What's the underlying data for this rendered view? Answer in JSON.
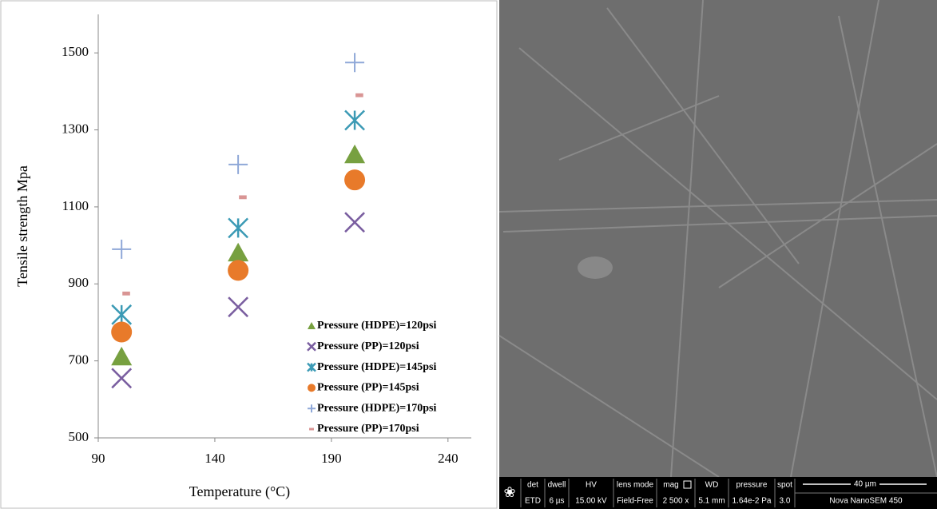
{
  "chart_data": {
    "type": "scatter",
    "xlabel": "Temperature (°C)",
    "ylabel": "Tensile strength Mpa",
    "xlim": [
      90,
      250
    ],
    "xticks": [
      90,
      140,
      190,
      240
    ],
    "ylim": [
      500,
      1600
    ],
    "yticks": [
      500,
      700,
      900,
      1100,
      1300,
      1500
    ],
    "series": [
      {
        "name": "Pressure (HDPE)=120psi",
        "color": "#77a040",
        "marker": "triangle",
        "x": [
          100,
          150,
          200
        ],
        "values": [
          710,
          980,
          1235
        ]
      },
      {
        "name": "Pressure (PP)=120psi",
        "color": "#7a5ea0",
        "marker": "x",
        "x": [
          100,
          150,
          200
        ],
        "values": [
          655,
          840,
          1060
        ]
      },
      {
        "name": "Pressure (HDPE)=145psi",
        "color": "#3b9ab5",
        "marker": "asterisk",
        "x": [
          100,
          150,
          200
        ],
        "values": [
          820,
          1045,
          1325
        ]
      },
      {
        "name": "Pressure (PP)=145psi",
        "color": "#e87a2a",
        "marker": "circle",
        "x": [
          100,
          150,
          200
        ],
        "values": [
          775,
          935,
          1170
        ]
      },
      {
        "name": "Pressure (HDPE)=170psi",
        "color": "#8fa8d8",
        "marker": "plus",
        "x": [
          100,
          150,
          200
        ],
        "values": [
          990,
          1210,
          1475
        ]
      },
      {
        "name": "Pressure (PP)=170psi",
        "color": "#d99594",
        "marker": "dash",
        "x": [
          102,
          152,
          202
        ],
        "values": [
          875,
          1125,
          1390
        ]
      }
    ]
  },
  "sem_info": {
    "columns": [
      {
        "header": "det",
        "value": "ETD"
      },
      {
        "header": "dwell",
        "value": "6 µs"
      },
      {
        "header": "HV",
        "value": "15.00 kV"
      },
      {
        "header": "lens mode",
        "value": "Field-Free"
      },
      {
        "header": "mag",
        "value": "2 500 x"
      },
      {
        "header": "WD",
        "value": "5.1 mm"
      },
      {
        "header": "pressure",
        "value": "1.64e-2 Pa"
      },
      {
        "header": "spot",
        "value": "3.0"
      }
    ],
    "scale_bar": "40 µm",
    "instrument": "Nova NanoSEM 450"
  }
}
